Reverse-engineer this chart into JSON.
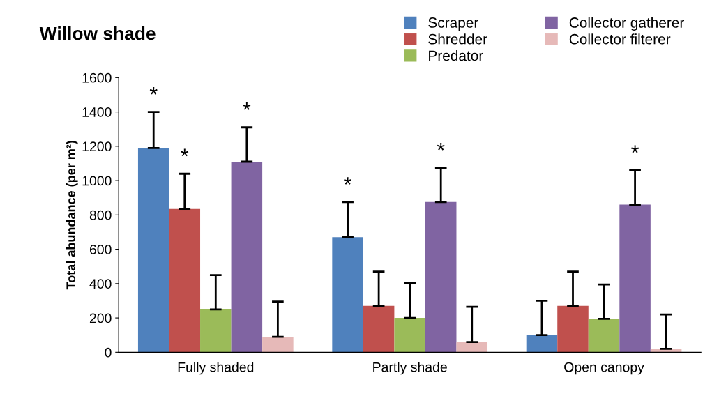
{
  "chart_data": {
    "type": "bar",
    "title": "Willow shade",
    "ylabel": "Total abundance (per m²)",
    "categories": [
      "Fully shaded",
      "Partly shade",
      "Open canopy"
    ],
    "series": [
      {
        "name": "Scraper",
        "color": "#4f81bd",
        "values": [
          1190,
          670,
          100
        ],
        "errors": [
          [
            1190,
            1400
          ],
          [
            670,
            875
          ],
          [
            100,
            300
          ]
        ],
        "value_labels": [
          "*",
          "*",
          null
        ]
      },
      {
        "name": "Shredder",
        "color": "#c0504d",
        "values": [
          835,
          270,
          270
        ],
        "errors": [
          [
            835,
            1040
          ],
          [
            270,
            470
          ],
          [
            270,
            470
          ]
        ],
        "value_labels": [
          "*",
          null,
          null
        ]
      },
      {
        "name": "Predator",
        "color": "#9bbb59",
        "values": [
          250,
          200,
          195
        ],
        "errors": [
          [
            250,
            450
          ],
          [
            200,
            405
          ],
          [
            195,
            395
          ]
        ]
      },
      {
        "name": "Collector gatherer",
        "color": "#8064a2",
        "values": [
          1110,
          875,
          860
        ],
        "errors": [
          [
            1110,
            1310
          ],
          [
            875,
            1075
          ],
          [
            860,
            1060
          ]
        ],
        "value_labels": [
          "*",
          "*",
          "*"
        ]
      },
      {
        "name": "Collector filterer",
        "color": "#e6b9b8",
        "values": [
          90,
          60,
          20
        ],
        "errors": [
          [
            90,
            295
          ],
          [
            60,
            265
          ],
          [
            20,
            220
          ]
        ]
      }
    ],
    "ylim": [
      0,
      1600
    ],
    "yticks": [
      0,
      200,
      400,
      600,
      800,
      1000,
      1200,
      1400,
      1600
    ],
    "grid": false,
    "legend": "top right"
  }
}
